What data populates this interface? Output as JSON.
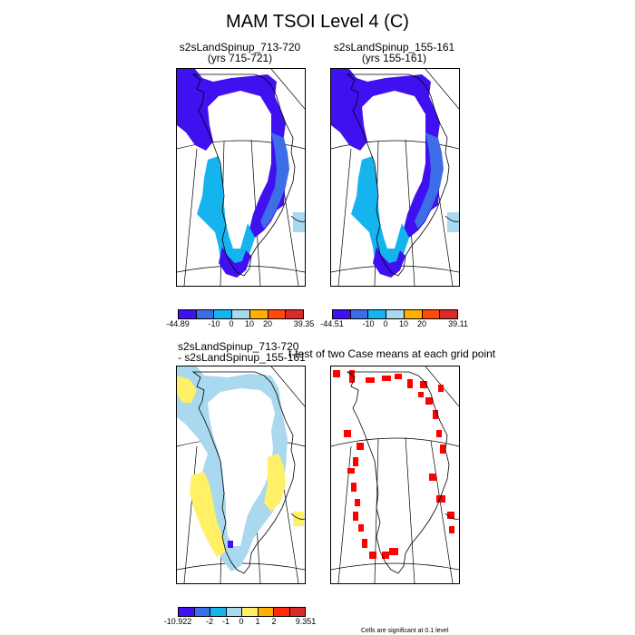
{
  "title": "MAM TSOI Level 4 (C)",
  "panels": [
    {
      "line1": "s2sLandSpinup_713-720",
      "line2": "(yrs 715-721)"
    },
    {
      "line1": "s2sLandSpinup_155-161",
      "line2": "(yrs 155-161)"
    },
    {
      "line1": "s2sLandSpinup_713-720",
      "line2": "- s2sLandSpinup_155-161"
    },
    {
      "line1": "t-test of two Case means at each grid point",
      "line2": ""
    }
  ],
  "colorbars": [
    {
      "min": "-44.89",
      "max": "39.35",
      "ticks": [
        "-10",
        "0",
        "10",
        "20"
      ]
    },
    {
      "min": "-44.51",
      "max": "39.11",
      "ticks": [
        "-10",
        "0",
        "10",
        "20"
      ]
    },
    {
      "min": "-10.922",
      "max": "9.351",
      "ticks": [
        "-2",
        "-1",
        "0",
        "1",
        "2"
      ]
    }
  ],
  "footnote": "Cells are significant at 0.1 level",
  "colors": {
    "abs_scale": [
      "#3f10f0",
      "#3d6ee8",
      "#16b4ef",
      "#a9d8ef",
      "#ffb000",
      "#ff4a0a",
      "#d92a2a"
    ],
    "diff_scale": [
      "#3f10f0",
      "#3d6ee8",
      "#16b4ef",
      "#a9d8ef",
      "#fff066",
      "#ffb000",
      "#ff2a0a",
      "#d92a2a"
    ],
    "significant": "#ff0000"
  }
}
